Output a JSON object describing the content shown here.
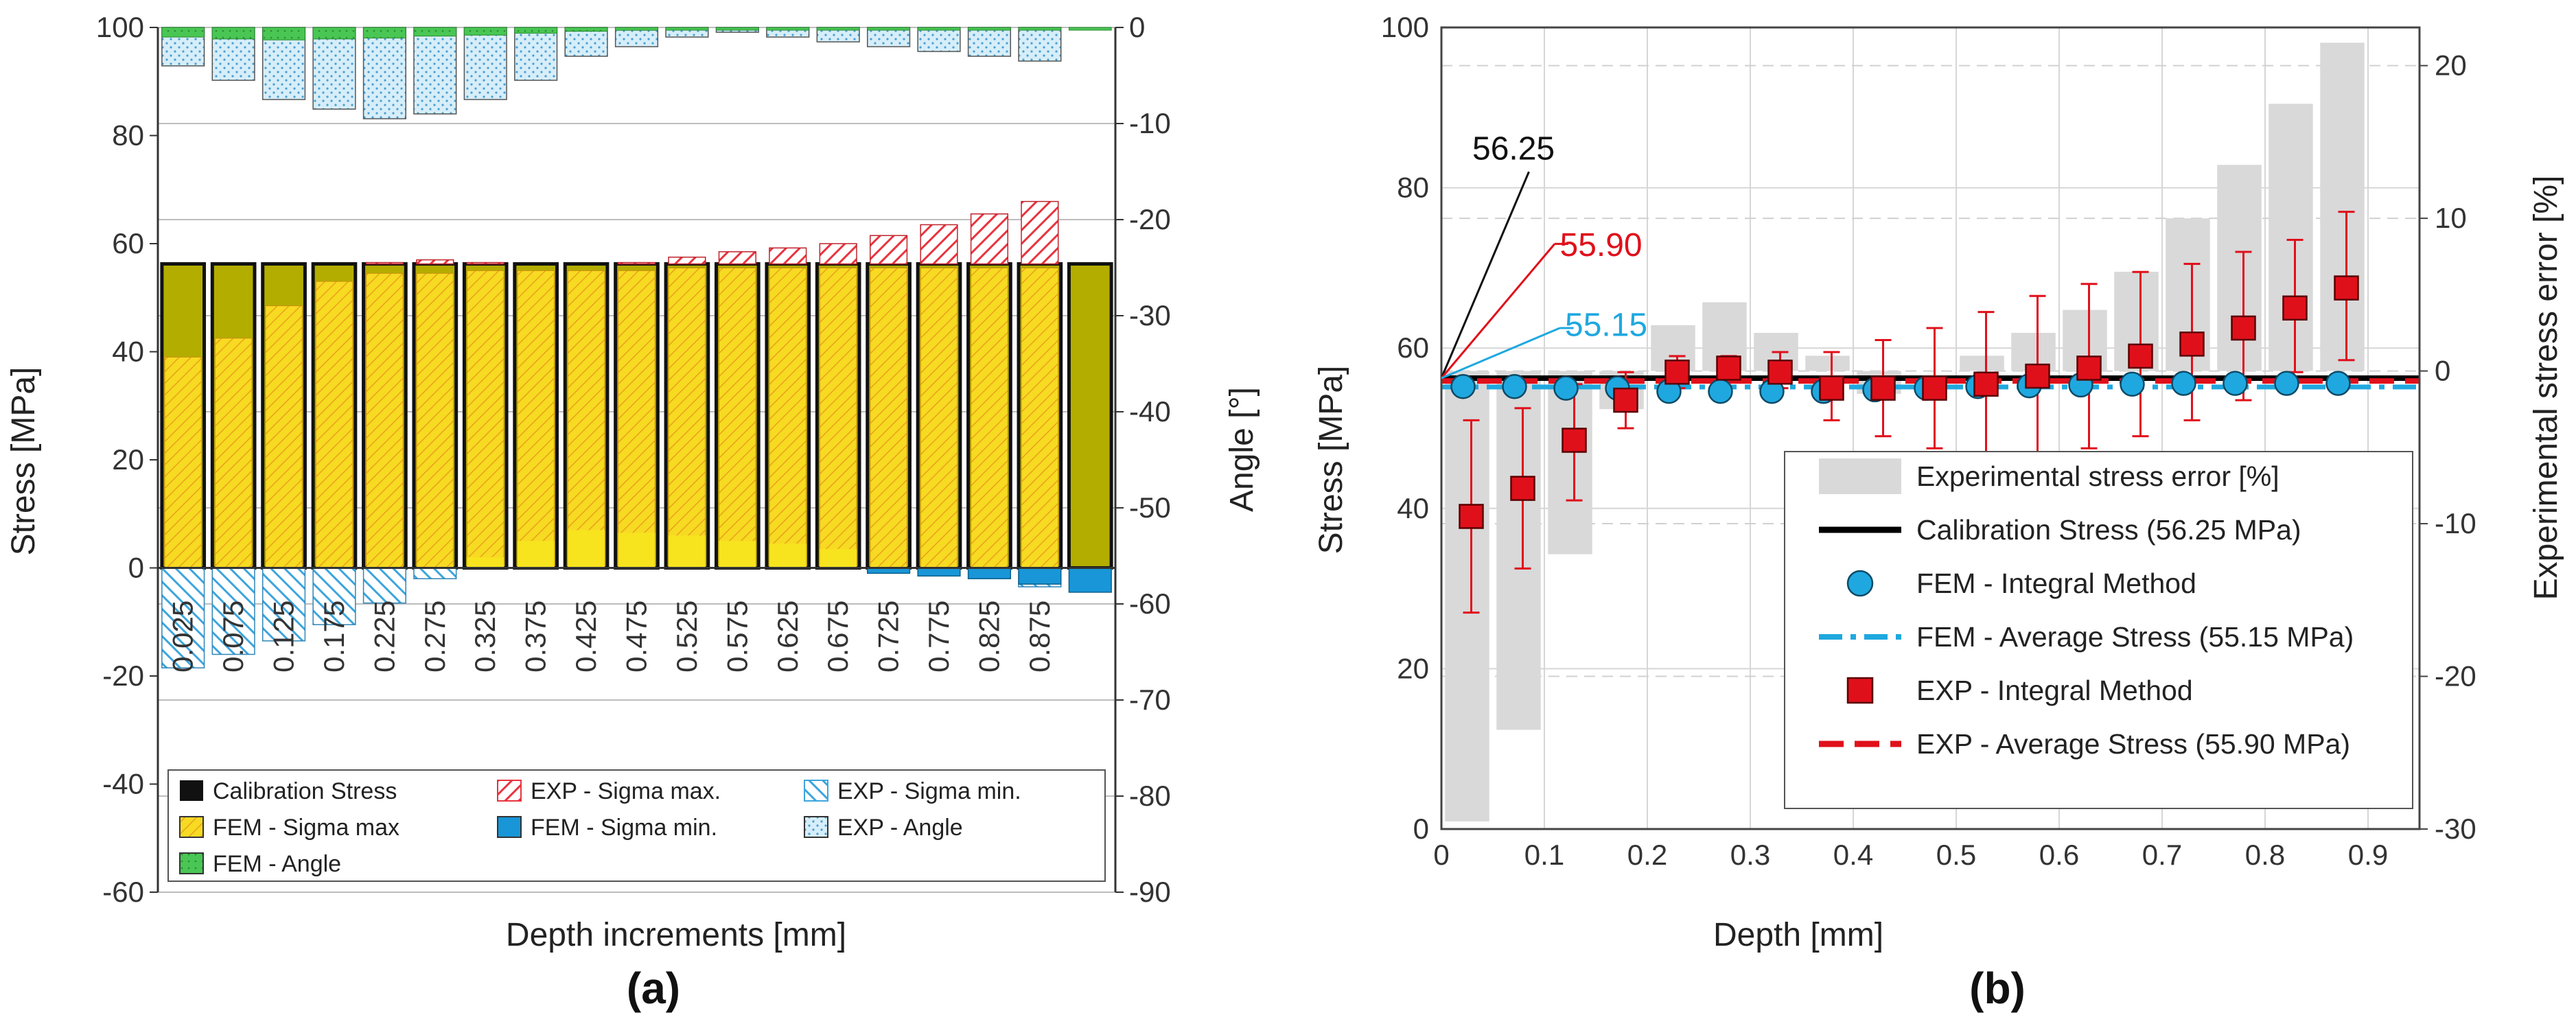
{
  "chart_data": [
    {
      "panel_label": "(a)",
      "type": "bar",
      "xlabel": "Depth increments [mm]",
      "ylabel": "Stress [MPa]",
      "y2label": "Angle [°]",
      "ylim": [
        -60,
        100
      ],
      "y2lim": [
        -90,
        0
      ],
      "yticks": [
        "-60",
        "-40",
        "-20",
        "0",
        "20",
        "40",
        "60",
        "80",
        "100"
      ],
      "y2ticks": [
        "-90",
        "-80",
        "-70",
        "-60",
        "-50",
        "-40",
        "-30",
        "-20",
        "-10",
        "0"
      ],
      "categories": [
        "0.025",
        "0.075",
        "0.125",
        "0.175",
        "0.225",
        "0.275",
        "0.325",
        "0.375",
        "0.425",
        "0.475",
        "0.525",
        "0.575",
        "0.625",
        "0.675",
        "0.725",
        "0.775",
        "0.825",
        "0.875",
        ""
      ],
      "series": [
        {
          "name": "Calibration Stress",
          "color": "#111111",
          "values": [
            56.25,
            56.25,
            56.25,
            56.25,
            56.25,
            56.25,
            56.25,
            56.25,
            56.25,
            56.25,
            56.25,
            56.25,
            56.25,
            56.25,
            56.25,
            56.25,
            56.25,
            56.25,
            56.25
          ]
        },
        {
          "name": "EXP - Sigma max.",
          "color": "#e8343f",
          "values": [
            56,
            55.5,
            55.8,
            55.5,
            56.5,
            57,
            56.5,
            56,
            56,
            56.5,
            57.5,
            58.5,
            59.2,
            60,
            61.5,
            63.5,
            65.5,
            67.8,
            null
          ]
        },
        {
          "name": "EXP - Sigma min.",
          "color": "#3da5dd",
          "values": [
            -18.5,
            -16,
            -13.5,
            -10.5,
            -6.5,
            -2,
            0,
            0,
            0,
            0,
            0,
            0,
            0,
            0,
            0,
            0,
            0,
            -3.5,
            null
          ]
        },
        {
          "name": "FEM - Sigma max",
          "color": "#f3d51a",
          "values": [
            39,
            42.5,
            48.5,
            53,
            54.5,
            54.5,
            55,
            55,
            55,
            55,
            55.5,
            55.5,
            55.5,
            55.5,
            55.5,
            55.5,
            55.5,
            55.5,
            56
          ]
        },
        {
          "name": "FEM - Sigma min.",
          "color": "#1896d8",
          "values": [
            0,
            0,
            0,
            0,
            0,
            0,
            2,
            5,
            7,
            6.5,
            6,
            5,
            4.5,
            3.5,
            -1,
            -1.5,
            -2,
            -3,
            -4.5
          ]
        },
        {
          "name": "EXP - Angle",
          "axis": "right",
          "color": "#cfe9f6",
          "values": [
            -4,
            -5.5,
            -7.5,
            -8.5,
            -9.5,
            -9,
            -7.5,
            -5.5,
            -3,
            -2,
            -1,
            -0.5,
            -1,
            -1.5,
            -2,
            -2.5,
            -3,
            -3.5,
            null
          ]
        },
        {
          "name": "FEM - Angle",
          "axis": "right",
          "color": "#3fc24a",
          "values": [
            -1,
            -1.2,
            -1.3,
            -1.2,
            -1.1,
            -0.9,
            -0.8,
            -0.6,
            -0.4,
            -0.3,
            -0.2,
            -0.2,
            -0.1,
            -0.1,
            -0.1,
            -0.1,
            -0.1,
            -0.1,
            -0.1
          ]
        }
      ],
      "legend": [
        "Calibration Stress",
        "EXP - Sigma max.",
        "EXP - Sigma min.",
        "FEM - Sigma max",
        "FEM - Sigma min.",
        "EXP - Angle",
        "FEM - Angle"
      ],
      "legend_position": "bottom-center"
    },
    {
      "panel_label": "(b)",
      "type": "scatter",
      "xlabel": "Depth [mm]",
      "ylabel": "Stress [MPa]",
      "y2label": "Experimental stress error [%]",
      "xlim": [
        0,
        0.95
      ],
      "ylim": [
        0,
        100
      ],
      "y2lim": [
        -30,
        22.5
      ],
      "xticks": [
        "0",
        "0.1",
        "0.2",
        "0.3",
        "0.4",
        "0.5",
        "0.6",
        "0.7",
        "0.8",
        "0.9"
      ],
      "yticks": [
        "0",
        "20",
        "40",
        "60",
        "80",
        "100"
      ],
      "y2ticks": [
        "-30",
        "-20",
        "-10",
        "0",
        "10",
        "20"
      ],
      "x": [
        0.025,
        0.075,
        0.125,
        0.175,
        0.225,
        0.275,
        0.325,
        0.375,
        0.425,
        0.475,
        0.525,
        0.575,
        0.625,
        0.675,
        0.725,
        0.775,
        0.825,
        0.875
      ],
      "series": [
        {
          "name": "Experimental stress error [%]",
          "type": "bar",
          "axis": "right",
          "color": "#d9d9d9",
          "values": [
            -29.5,
            -23.5,
            -12,
            -2.5,
            3,
            4.5,
            2.5,
            1,
            -1.5,
            0,
            1,
            2.5,
            4,
            6.5,
            10,
            13.5,
            17.5,
            21.5
          ]
        },
        {
          "name": "Calibration Stress (56.25 MPa)",
          "type": "hline",
          "color": "#000000",
          "value": 56.25
        },
        {
          "name": "FEM - Integral Method",
          "type": "scatter",
          "marker": "circle",
          "color": "#1fa8df",
          "values": [
            55.2,
            55.2,
            55,
            55,
            54.6,
            54.6,
            54.6,
            54.6,
            54.8,
            55,
            55.2,
            55.3,
            55.4,
            55.5,
            55.6,
            55.6,
            55.6,
            55.6
          ]
        },
        {
          "name": "FEM - Average Stress (55.15 MPa)",
          "type": "hline",
          "style": "dash-dot",
          "color": "#1fa8df",
          "value": 55.15
        },
        {
          "name": "EXP - Integral Method",
          "type": "scatter",
          "marker": "square",
          "color": "#e0101b",
          "values": [
            39,
            42.5,
            48.5,
            53.5,
            57,
            57.5,
            57,
            55,
            55,
            55,
            55.5,
            56.5,
            57.5,
            59,
            60.5,
            62.5,
            65,
            67.5
          ],
          "err_low": [
            12,
            10,
            7.5,
            3.5,
            2,
            1.5,
            2,
            4,
            6,
            7.5,
            9,
            10,
            10,
            10,
            9.5,
            9,
            8,
            9
          ],
          "err_high": [
            12,
            10,
            7,
            3.5,
            2,
            1.5,
            2.5,
            4.5,
            6,
            7.5,
            9,
            10,
            10.5,
            10.5,
            10,
            9.5,
            8.5,
            9.5
          ]
        },
        {
          "name": "EXP - Average Stress (55.90 MPa)",
          "type": "hline",
          "style": "dashed",
          "color": "#e0101b",
          "value": 55.9
        }
      ],
      "annotations": [
        {
          "text": "56.25",
          "color": "#111111"
        },
        {
          "text": "55.90",
          "color": "#e0101b"
        },
        {
          "text": "55.15",
          "color": "#1fa8df"
        }
      ],
      "legend": [
        "Experimental stress error [%]",
        "Calibration Stress (56.25 MPa)",
        "FEM - Integral Method",
        "FEM - Average Stress (55.15 MPa)",
        "EXP - Integral Method",
        "EXP - Average Stress (55.90 MPa)"
      ],
      "legend_position": "bottom-right",
      "grid": true
    }
  ]
}
